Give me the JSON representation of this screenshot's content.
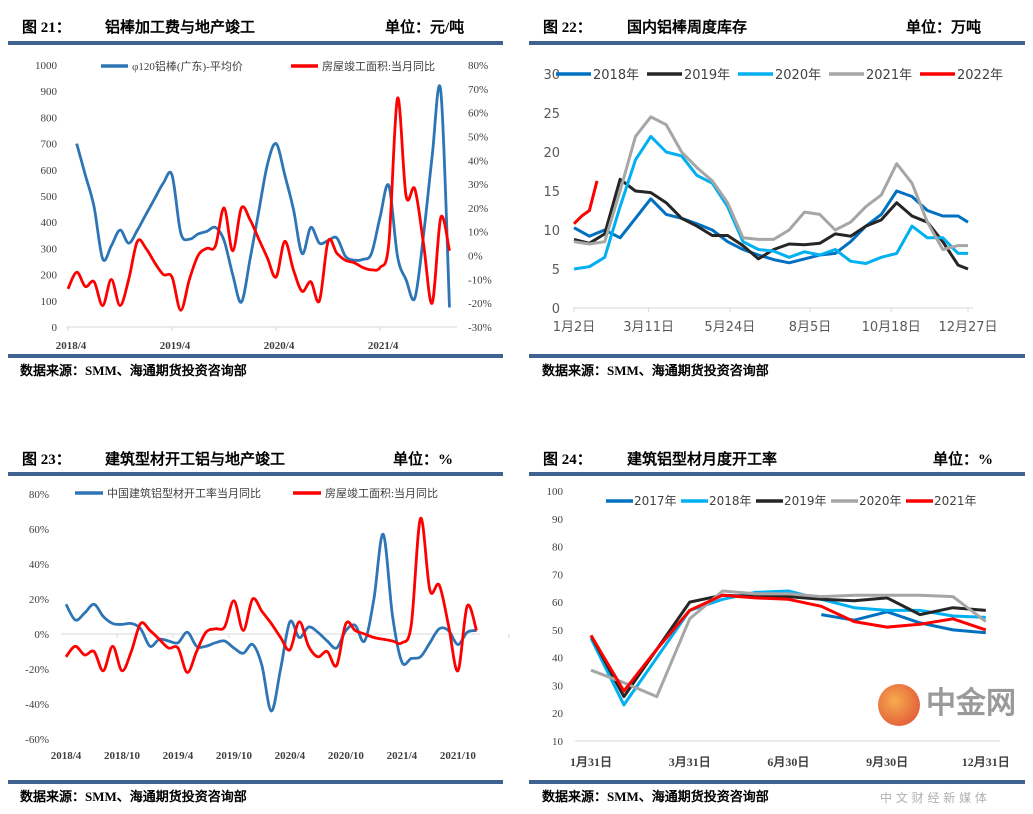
{
  "source": "数据来源：SMM、海通期货投资咨询部",
  "watermark": {
    "brand": "中金网",
    "tagline": "中 文 财 经 新 媒 体"
  },
  "chart_data": [
    {
      "type": "line",
      "figure": "图 21：",
      "title": "铝棒加工费与地产竣工",
      "unit": "单位：元/吨",
      "x": [
        "2018/4",
        "2018/5",
        "2018/6",
        "2018/7",
        "2018/8",
        "2018/9",
        "2018/10",
        "2018/11",
        "2018/12",
        "2019/1",
        "2019/2",
        "2019/3",
        "2019/4",
        "2019/5",
        "2019/6",
        "2019/7",
        "2019/8",
        "2019/9",
        "2019/10",
        "2019/11",
        "2019/12",
        "2020/1",
        "2020/2",
        "2020/3",
        "2020/4",
        "2020/5",
        "2020/6",
        "2020/7",
        "2020/8",
        "2020/9",
        "2020/10",
        "2020/11",
        "2020/12",
        "2021/1",
        "2021/2",
        "2021/3",
        "2021/4",
        "2021/5",
        "2021/6",
        "2021/7",
        "2021/8",
        "2021/9",
        "2021/10",
        "2021/11",
        "2021/12"
      ],
      "x_ticks": [
        "2018/4",
        "2019/4",
        "2020/4",
        "2021/4"
      ],
      "ylim_left": [
        0,
        1000
      ],
      "ylim_right": [
        -30,
        80
      ],
      "y_ticks_left": [
        "0",
        "100",
        "200",
        "300",
        "400",
        "500",
        "600",
        "700",
        "800",
        "900",
        "1000"
      ],
      "y_ticks_right": [
        "-30%",
        "-20%",
        "-10%",
        "0%",
        "10%",
        "20%",
        "30%",
        "40%",
        "50%",
        "60%",
        "70%",
        "80%"
      ],
      "legend": "top",
      "series": [
        {
          "name": "φ120铝棒(广东)-平均价",
          "axis": "left",
          "color": "#2e75b6",
          "values": [
            null,
            700,
            580,
            460,
            260,
            310,
            370,
            320,
            370,
            430,
            490,
            550,
            580,
            360,
            335,
            355,
            365,
            380,
            330,
            200,
            95,
            260,
            440,
            620,
            700,
            580,
            450,
            280,
            380,
            320,
            330,
            340,
            270,
            255,
            258,
            280,
            420,
            540,
            270,
            180,
            110,
            350,
            650,
            900,
            75
          ]
        },
        {
          "name": "房屋竣工面积:当月同比",
          "axis": "right",
          "color": "#ff0000",
          "values": [
            -14,
            -7,
            -13,
            -11,
            -21,
            -10,
            -21,
            -10,
            6,
            3,
            -3,
            -8,
            -9,
            -23,
            -10,
            0,
            3,
            4,
            20,
            2,
            20,
            15,
            7,
            -1,
            -9,
            6,
            -6,
            -15,
            -11,
            -19,
            6,
            1,
            -2,
            -3,
            -5,
            -6,
            -5,
            5,
            66,
            25,
            28,
            5,
            -20,
            16,
            2
          ]
        }
      ]
    },
    {
      "type": "line",
      "figure": "图 22：",
      "title": "国内铝棒周度库存",
      "unit": "单位：万吨",
      "x": [
        "1/2",
        "1/16",
        "1/30",
        "2/13",
        "2/27",
        "3/13",
        "3/27",
        "4/10",
        "4/24",
        "5/8",
        "5/22",
        "6/5",
        "6/19",
        "7/3",
        "7/17",
        "7/31",
        "8/14",
        "8/28",
        "9/11",
        "9/25",
        "10/9",
        "10/23",
        "11/6",
        "11/20",
        "12/4",
        "12/18",
        "12/27"
      ],
      "x_ticks": [
        "1月2日",
        "3月11日",
        "5月24日",
        "8月5日",
        "10月18日",
        "12月27日"
      ],
      "ylim": [
        0,
        30
      ],
      "y_ticks": [
        "0",
        "5",
        "10",
        "15",
        "20",
        "25",
        "30"
      ],
      "legend": "top",
      "series": [
        {
          "name": "2018年",
          "color": "#0070c0",
          "values": [
            10.3,
            9.2,
            10,
            9,
            11.5,
            14,
            12,
            11.5,
            10.8,
            10,
            8.5,
            7.5,
            6.8,
            6.2,
            5.8,
            6.3,
            6.8,
            7,
            8.5,
            10.5,
            12,
            15,
            14.3,
            12.5,
            11.8,
            11.8,
            11
          ]
        },
        {
          "name": "2019年",
          "color": "#262626",
          "values": [
            8.8,
            8.3,
            9.5,
            16.5,
            15,
            14.8,
            13.5,
            11.5,
            10.5,
            9.3,
            9.3,
            8,
            6.3,
            7.5,
            8.2,
            8.1,
            8.3,
            9.5,
            9.2,
            10.5,
            11.3,
            13.5,
            11.8,
            11,
            8.5,
            5.5,
            5.0
          ]
        },
        {
          "name": "2020年",
          "color": "#00b0f0",
          "values": [
            5,
            5.3,
            6.5,
            13,
            19,
            22,
            20,
            19.5,
            17,
            16,
            13,
            8.5,
            7.5,
            7.3,
            6.5,
            7.2,
            6.8,
            7.5,
            6,
            5.7,
            6.5,
            7,
            10.5,
            9,
            9,
            7,
            7
          ]
        },
        {
          "name": "2021年",
          "color": "#a6a6a6",
          "values": [
            8.5,
            8.2,
            8.5,
            15,
            22,
            24.5,
            23.5,
            20,
            18,
            16.3,
            13.5,
            9,
            8.8,
            8.8,
            10,
            12.3,
            12,
            10,
            11,
            13,
            14.5,
            18.5,
            16,
            11,
            7.5,
            8,
            8
          ]
        },
        {
          "name": "2022年",
          "color": "#ff0000",
          "x": [
            "1/2",
            "1/9",
            "1/16",
            "1/23"
          ],
          "values": [
            10.8,
            11.8,
            12.5,
            16.3
          ]
        }
      ]
    },
    {
      "type": "line",
      "figure": "图 23：",
      "title": "建筑型材开工铝与地产竣工",
      "unit": "单位：%",
      "x": [
        "2018/4",
        "2018/5",
        "2018/6",
        "2018/7",
        "2018/8",
        "2018/9",
        "2018/10",
        "2018/11",
        "2018/12",
        "2019/1",
        "2019/2",
        "2019/3",
        "2019/4",
        "2019/5",
        "2019/6",
        "2019/7",
        "2019/8",
        "2019/9",
        "2019/10",
        "2019/11",
        "2019/12",
        "2020/1",
        "2020/2",
        "2020/3",
        "2020/4",
        "2020/5",
        "2020/6",
        "2020/7",
        "2020/8",
        "2020/9",
        "2020/10",
        "2020/11",
        "2020/12",
        "2021/1",
        "2021/2",
        "2021/3",
        "2021/4",
        "2021/5",
        "2021/6",
        "2021/7",
        "2021/8",
        "2021/9",
        "2021/10",
        "2021/11",
        "2021/12"
      ],
      "x_ticks": [
        "2018/4",
        "2018/10",
        "2019/4",
        "2019/10",
        "2020/4",
        "2020/10",
        "2021/4",
        "2021/10"
      ],
      "ylim": [
        -60,
        80
      ],
      "y_ticks": [
        "-60%",
        "-40%",
        "-20%",
        "0%",
        "20%",
        "40%",
        "60%",
        "80%"
      ],
      "legend": "top",
      "series": [
        {
          "name": "中国建筑铝型材开工率当月同比",
          "color": "#2e75b6",
          "values": [
            17,
            8,
            12,
            17,
            10,
            6,
            5.5,
            6,
            3,
            -7,
            -3,
            -4,
            -5,
            1,
            -7,
            -7,
            -5,
            -4,
            -8,
            -11,
            -6,
            -18,
            -44,
            -20,
            7,
            -2,
            4,
            1,
            -4,
            -8,
            2,
            5,
            -4,
            20,
            57,
            10,
            -16,
            -14,
            -13,
            -5,
            3,
            2,
            -6,
            1,
            2
          ]
        },
        {
          "name": "房屋竣工面积:当月同比",
          "color": "#ff0000",
          "values": [
            -13,
            -7,
            -12,
            -10,
            -21,
            -7,
            -21,
            -10,
            6,
            2,
            -3,
            -8,
            -8,
            -22,
            -10,
            1,
            3,
            4,
            19,
            2,
            20,
            13,
            6,
            -2,
            -9,
            7,
            -7,
            -13,
            -10,
            -18,
            6,
            2,
            0,
            -2,
            -3,
            -4,
            -5,
            5,
            66,
            25,
            28,
            5,
            -21,
            16,
            2
          ]
        }
      ]
    },
    {
      "type": "line",
      "figure": "图 24：",
      "title": "建筑铝型材月度开工率",
      "unit": "单位：%",
      "x_ticks": [
        "1月31日",
        "3月31日",
        "6月30日",
        "9月30日",
        "12月31日"
      ],
      "ylim": [
        10,
        100
      ],
      "y_ticks": [
        "10",
        "20",
        "30",
        "40",
        "50",
        "60",
        "70",
        "80",
        "90",
        "100"
      ],
      "legend": "top",
      "series": [
        {
          "name": "2017年",
          "color": "#0070c0",
          "values": [
            null,
            null,
            null,
            null,
            null,
            null,
            null,
            55.5,
            53.5,
            56.5,
            52.5,
            50,
            49
          ]
        },
        {
          "name": "2018年",
          "color": "#00b0f0",
          "values": [
            47,
            23,
            40,
            57,
            61,
            63.5,
            64,
            61,
            58,
            57,
            57,
            55,
            54.5
          ]
        },
        {
          "name": "2019年",
          "color": "#262626",
          "values": [
            48,
            26,
            43,
            60,
            62.5,
            62,
            62,
            61,
            60.5,
            61.5,
            55.5,
            58,
            57
          ]
        },
        {
          "name": "2020年",
          "color": "#a6a6a6",
          "values": [
            35.5,
            31,
            26,
            54,
            64,
            63,
            63,
            62,
            62.5,
            62.5,
            62.5,
            62,
            53
          ]
        },
        {
          "name": "2021年",
          "color": "#ff0000",
          "values": [
            48,
            28,
            43,
            57,
            62.5,
            61.5,
            61,
            58.5,
            53,
            51,
            52,
            54,
            50
          ]
        }
      ]
    }
  ]
}
